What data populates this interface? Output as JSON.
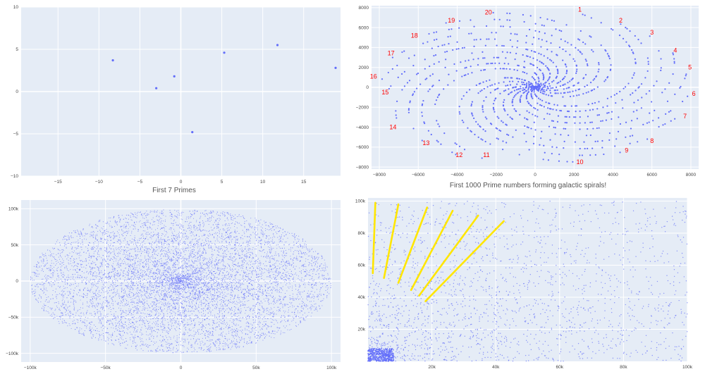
{
  "chart_data": [
    {
      "type": "scatter",
      "title": "First 7 Primes",
      "xlim": [
        -19.5,
        19.5
      ],
      "ylim": [
        -10,
        10
      ],
      "xticks": [
        -15,
        -10,
        -5,
        0,
        5,
        10,
        15
      ],
      "yticks": [
        -10,
        -5,
        0,
        5,
        10
      ],
      "x_tick_labels": [
        "−15",
        "−10",
        "−5",
        "0",
        "5",
        "10",
        "15"
      ],
      "y_tick_labels": [
        "−10",
        "−5",
        "0",
        "5",
        "10"
      ],
      "x": [
        -8.3,
        -3.0,
        -0.8,
        1.4,
        5.3,
        11.8,
        18.9
      ],
      "y": [
        3.7,
        0.4,
        1.8,
        -4.8,
        4.6,
        5.5,
        2.8
      ],
      "marker_color": "#636efa"
    },
    {
      "type": "scatter",
      "title": "First 1000 Prime numbers forming galactic spirals!",
      "xlim": [
        -8400,
        8400
      ],
      "ylim": [
        -8200,
        8200
      ],
      "xticks": [
        -8000,
        -6000,
        -4000,
        -2000,
        0,
        2000,
        4000,
        6000,
        8000
      ],
      "yticks": [
        -8000,
        -6000,
        -4000,
        -2000,
        0,
        2000,
        4000,
        6000,
        8000
      ],
      "x_tick_labels": [
        "−8000",
        "−6000",
        "−4000",
        "−2000",
        "0",
        "2000",
        "4000",
        "6000",
        "8000"
      ],
      "y_tick_labels": [
        "−8000",
        "−6000",
        "−4000",
        "−2000",
        "0",
        "2000",
        "4000",
        "6000",
        "8000"
      ],
      "points": 1000,
      "marker_color": "#636efa",
      "annotation_color": "#ff0000",
      "annotations": [
        {
          "text": "1",
          "x": 2300,
          "y": 7600
        },
        {
          "text": "2",
          "x": 4400,
          "y": 6500
        },
        {
          "text": "3",
          "x": 6000,
          "y": 5300
        },
        {
          "text": "4",
          "x": 7200,
          "y": 3500
        },
        {
          "text": "5",
          "x": 7950,
          "y": 1800
        },
        {
          "text": "6",
          "x": 8150,
          "y": -850
        },
        {
          "text": "7",
          "x": 7700,
          "y": -3100
        },
        {
          "text": "8",
          "x": 6000,
          "y": -5600
        },
        {
          "text": "9",
          "x": 4700,
          "y": -6550
        },
        {
          "text": "10",
          "x": 2300,
          "y": -7700
        },
        {
          "text": "11",
          "x": -2500,
          "y": -7000
        },
        {
          "text": "12",
          "x": -3900,
          "y": -7000
        },
        {
          "text": "13",
          "x": -5600,
          "y": -5800
        },
        {
          "text": "14",
          "x": -7300,
          "y": -4200
        },
        {
          "text": "15",
          "x": -7700,
          "y": -700
        },
        {
          "text": "16",
          "x": -8300,
          "y": 900
        },
        {
          "text": "17",
          "x": -7400,
          "y": 3200
        },
        {
          "text": "18",
          "x": -6200,
          "y": 5000
        },
        {
          "text": "19",
          "x": -4300,
          "y": 6500
        },
        {
          "text": "20",
          "x": -2400,
          "y": 7300
        }
      ]
    },
    {
      "type": "scatter",
      "title": "",
      "xlim": [
        -106000,
        106000
      ],
      "ylim": [
        -112000,
        112000
      ],
      "xticks": [
        -100000,
        -50000,
        0,
        50000,
        100000
      ],
      "yticks": [
        -100000,
        -50000,
        0,
        50000,
        100000
      ],
      "x_tick_labels": [
        "−100k",
        "−50k",
        "0",
        "50k",
        "100k"
      ],
      "y_tick_labels": [
        "−100k",
        "−50k",
        "0",
        "50k",
        "100k"
      ],
      "points": 9000,
      "marker_color": "#636efa"
    },
    {
      "type": "scatter",
      "title": "",
      "xlim": [
        0,
        100000
      ],
      "ylim": [
        0,
        102000
      ],
      "xticks": [
        20000,
        40000,
        60000,
        80000,
        100000
      ],
      "yticks": [
        20000,
        40000,
        60000,
        80000,
        100000
      ],
      "x_tick_labels": [
        "20k",
        "40k",
        "60k",
        "80k",
        "100k"
      ],
      "y_tick_labels": [
        "20k",
        "40k",
        "60k",
        "80k",
        "100k"
      ],
      "points": 2600,
      "marker_color": "#636efa",
      "highlight_color": "#ffe600",
      "highlight_lines": [
        {
          "x1": 1500,
          "y1": 55000,
          "x2": 2300,
          "y2": 99000
        },
        {
          "x1": 5000,
          "y1": 52000,
          "x2": 9500,
          "y2": 98000
        },
        {
          "x1": 9500,
          "y1": 49000,
          "x2": 18500,
          "y2": 96000
        },
        {
          "x1": 13500,
          "y1": 44500,
          "x2": 26500,
          "y2": 94000
        },
        {
          "x1": 16000,
          "y1": 41000,
          "x2": 34500,
          "y2": 91000
        },
        {
          "x1": 18000,
          "y1": 37500,
          "x2": 42500,
          "y2": 87500
        }
      ]
    }
  ]
}
